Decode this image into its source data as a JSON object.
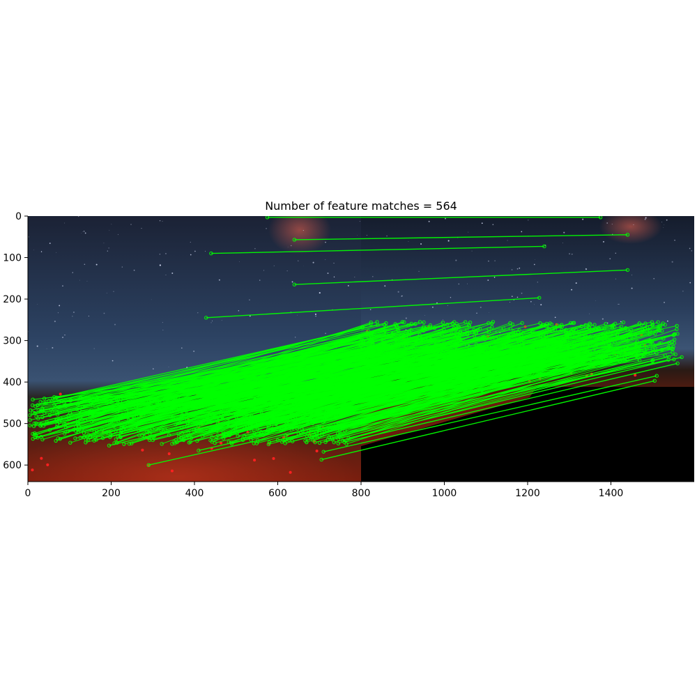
{
  "chart_data": {
    "type": "scatter",
    "title": "Number of feature matches = 564",
    "xlabel": "",
    "ylabel": "",
    "xlim": [
      0,
      1600
    ],
    "ylim": [
      640,
      0
    ],
    "x_ticks": [
      0,
      200,
      400,
      600,
      800,
      1000,
      1200,
      1400
    ],
    "y_ticks": [
      0,
      100,
      200,
      300,
      400,
      500,
      600
    ],
    "grid": false,
    "left_image_width": 800,
    "match_count": 564,
    "representative_matches": [
      {
        "x1": 575,
        "y1": 3,
        "x2": 1375,
        "y2": 3
      },
      {
        "x1": 640,
        "y1": 57,
        "x2": 1440,
        "y2": 45
      },
      {
        "x1": 440,
        "y1": 90,
        "x2": 1240,
        "y2": 73
      },
      {
        "x1": 640,
        "y1": 165,
        "x2": 1440,
        "y2": 130
      },
      {
        "x1": 428,
        "y1": 245,
        "x2": 1228,
        "y2": 197
      },
      {
        "x1": 60,
        "y1": 440,
        "x2": 860,
        "y2": 258
      },
      {
        "x1": 90,
        "y1": 455,
        "x2": 890,
        "y2": 275
      },
      {
        "x1": 30,
        "y1": 470,
        "x2": 830,
        "y2": 285
      },
      {
        "x1": 5,
        "y1": 480,
        "x2": 805,
        "y2": 300
      },
      {
        "x1": 70,
        "y1": 490,
        "x2": 870,
        "y2": 310
      },
      {
        "x1": 120,
        "y1": 500,
        "x2": 920,
        "y2": 320
      },
      {
        "x1": 200,
        "y1": 495,
        "x2": 1000,
        "y2": 305
      },
      {
        "x1": 260,
        "y1": 505,
        "x2": 1060,
        "y2": 315
      },
      {
        "x1": 330,
        "y1": 515,
        "x2": 1130,
        "y2": 330
      },
      {
        "x1": 400,
        "y1": 520,
        "x2": 1200,
        "y2": 335
      },
      {
        "x1": 470,
        "y1": 525,
        "x2": 1270,
        "y2": 330
      },
      {
        "x1": 520,
        "y1": 530,
        "x2": 1320,
        "y2": 340
      },
      {
        "x1": 560,
        "y1": 520,
        "x2": 1360,
        "y2": 320
      },
      {
        "x1": 600,
        "y1": 540,
        "x2": 1400,
        "y2": 345
      },
      {
        "x1": 650,
        "y1": 525,
        "x2": 1450,
        "y2": 330
      },
      {
        "x1": 700,
        "y1": 515,
        "x2": 1500,
        "y2": 320
      },
      {
        "x1": 750,
        "y1": 510,
        "x2": 1550,
        "y2": 315
      },
      {
        "x1": 770,
        "y1": 535,
        "x2": 1570,
        "y2": 340
      },
      {
        "x1": 180,
        "y1": 535,
        "x2": 980,
        "y2": 350
      },
      {
        "x1": 195,
        "y1": 553,
        "x2": 995,
        "y2": 365
      },
      {
        "x1": 300,
        "y1": 540,
        "x2": 1100,
        "y2": 345
      },
      {
        "x1": 580,
        "y1": 545,
        "x2": 1380,
        "y2": 350
      },
      {
        "x1": 710,
        "y1": 568,
        "x2": 1510,
        "y2": 385
      },
      {
        "x1": 705,
        "y1": 587,
        "x2": 1505,
        "y2": 397
      },
      {
        "x1": 290,
        "y1": 600,
        "x2": 1090,
        "y2": 420
      },
      {
        "x1": 410,
        "y1": 565,
        "x2": 1210,
        "y2": 380
      },
      {
        "x1": 110,
        "y1": 515,
        "x2": 910,
        "y2": 330
      },
      {
        "x1": 40,
        "y1": 452,
        "x2": 840,
        "y2": 262
      },
      {
        "x1": 760,
        "y1": 545,
        "x2": 1560,
        "y2": 355
      },
      {
        "x1": 740,
        "y1": 500,
        "x2": 1540,
        "y2": 305
      },
      {
        "x1": 640,
        "y1": 500,
        "x2": 1440,
        "y2": 300
      },
      {
        "x1": 500,
        "y1": 480,
        "x2": 1300,
        "y2": 290
      },
      {
        "x1": 380,
        "y1": 470,
        "x2": 1180,
        "y2": 275
      },
      {
        "x1": 260,
        "y1": 460,
        "x2": 1060,
        "y2": 265
      },
      {
        "x1": 150,
        "y1": 470,
        "x2": 950,
        "y2": 270
      }
    ]
  },
  "colors": {
    "match_line": "#00ff00",
    "unmatched_keypoint": "#ff2020",
    "sky_top": "#1a2236",
    "sky_mid": "#2f4464",
    "ground": "#4a1a10",
    "ground_glow": "#a32a14",
    "void": "#000000"
  }
}
